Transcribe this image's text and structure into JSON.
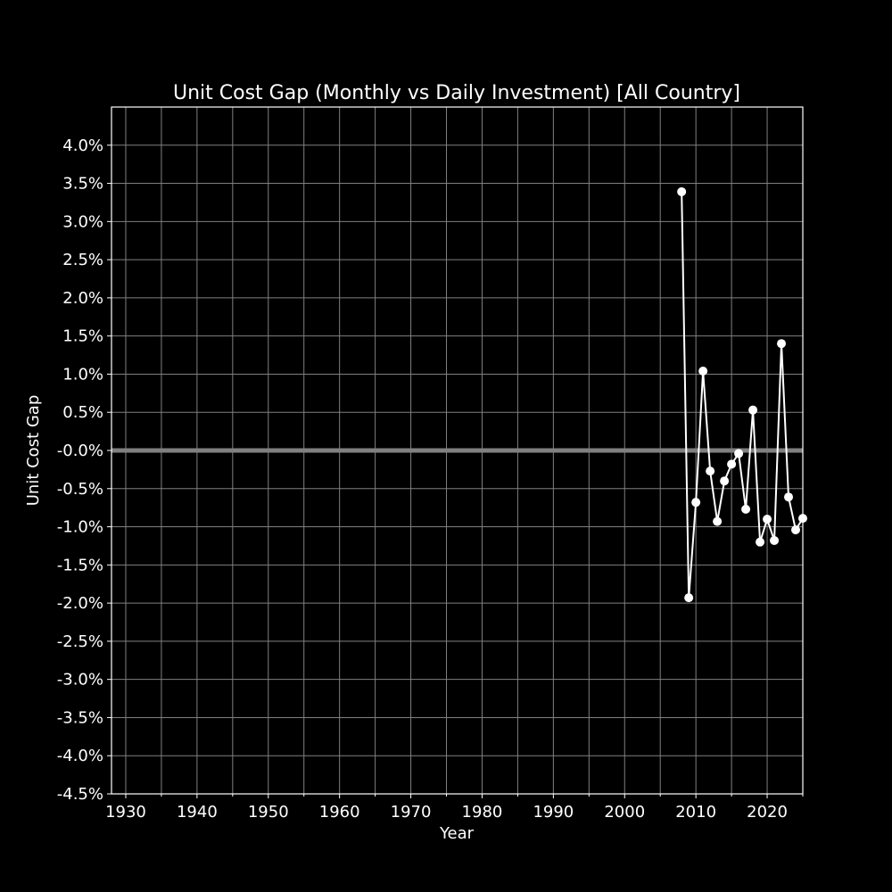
{
  "chart_data": {
    "type": "line",
    "title": "Unit Cost Gap (Monthly vs Daily Investment) [All Country]",
    "xlabel": "Year",
    "ylabel": "Unit Cost Gap",
    "xlim": [
      1928,
      2025
    ],
    "ylim": [
      -4.5,
      4.5
    ],
    "x_ticks": [
      1930,
      1940,
      1950,
      1960,
      1970,
      1980,
      1990,
      2000,
      2010,
      2020
    ],
    "x_tick_labels": [
      "1930",
      "1940",
      "1950",
      "1960",
      "1970",
      "1980",
      "1990",
      "2000",
      "2010",
      "2020"
    ],
    "x_minor_ticks": [
      1935,
      1945,
      1955,
      1965,
      1975,
      1985,
      1995,
      2005,
      2015,
      2025
    ],
    "y_ticks": [
      4.0,
      3.5,
      3.0,
      2.5,
      2.0,
      1.5,
      1.0,
      0.5,
      0.0,
      -0.5,
      -1.0,
      -1.5,
      -2.0,
      -2.5,
      -3.0,
      -3.5,
      -4.0,
      -4.5
    ],
    "y_tick_labels": [
      "4.0%",
      "3.5%",
      "3.0%",
      "2.5%",
      "2.0%",
      "1.5%",
      "1.0%",
      "0.5%",
      "-0.0%",
      "-0.5%",
      "-1.0%",
      "-1.5%",
      "-2.0%",
      "-2.5%",
      "-3.0%",
      "-3.5%",
      "-4.0%",
      "-4.5%"
    ],
    "grid": true,
    "reference_line": {
      "y": 0.0,
      "color": "#808080"
    },
    "series": [
      {
        "name": "Unit Cost Gap",
        "color": "#ffffff",
        "marker": "circle",
        "x": [
          2008,
          2009,
          2010,
          2011,
          2012,
          2013,
          2014,
          2015,
          2016,
          2017,
          2018,
          2019,
          2020,
          2021,
          2022,
          2023,
          2024,
          2025
        ],
        "values": [
          3.39,
          -1.93,
          -0.68,
          1.04,
          -0.27,
          -0.93,
          -0.4,
          -0.18,
          -0.04,
          -0.77,
          0.53,
          -1.2,
          -0.9,
          -1.18,
          1.4,
          -0.61,
          -1.04,
          -0.89
        ]
      }
    ]
  },
  "colors": {
    "background": "#000000",
    "foreground": "#ffffff",
    "grid": "#808080",
    "zero_line": "#808080"
  }
}
